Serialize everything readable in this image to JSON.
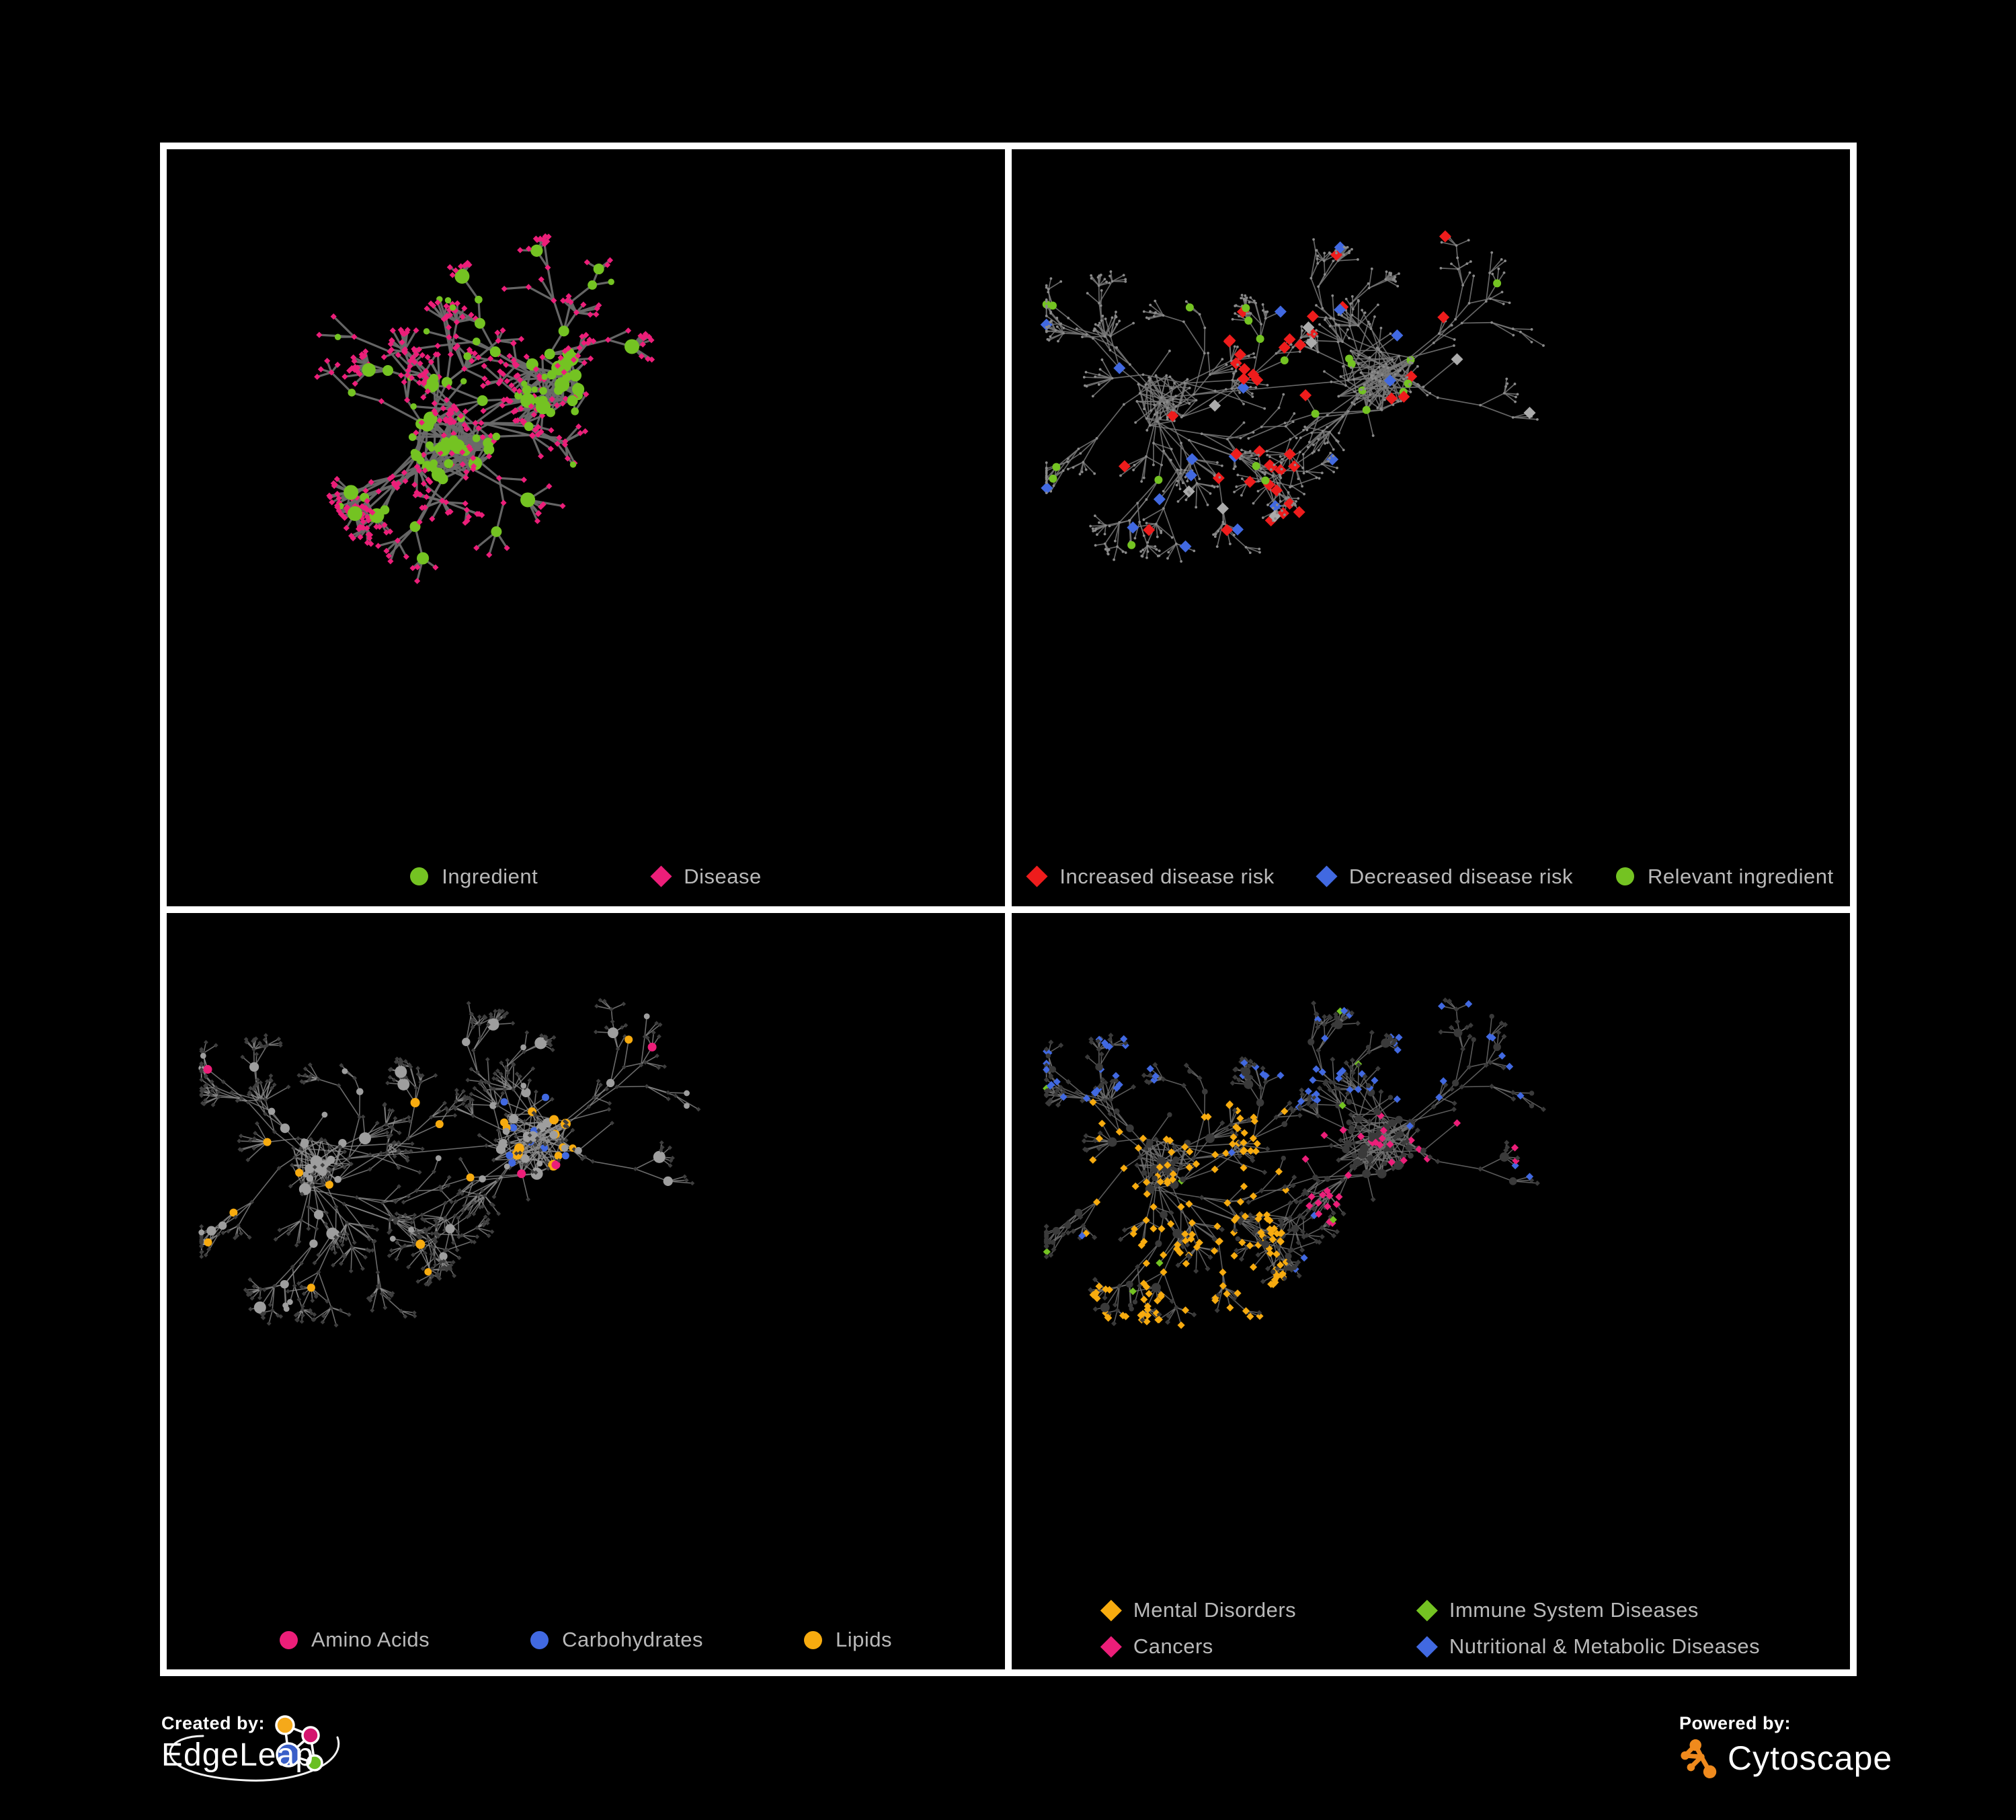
{
  "page": {
    "background": "#000000",
    "frame_color": "#ffffff"
  },
  "palette": {
    "green": "#74c322",
    "magenta": "#ec1e79",
    "red": "#ee1c1c",
    "blue": "#4169e1",
    "amber": "#f7ab0f",
    "silver": "#ababab",
    "legend_text": "#b9b9b9"
  },
  "panels": [
    {
      "name": "ingredient-disease-network",
      "legend": [
        {
          "shape": "circle",
          "color": "#74c322",
          "label": "Ingredient"
        },
        {
          "shape": "diamond",
          "color": "#ec1e79",
          "label": "Disease"
        }
      ],
      "style": {
        "edge_color": "#6a6a6a",
        "edge_width": 3.2,
        "edge_opacity": 0.95,
        "circle_color": "#74c322",
        "diamond_color": "#ec1e79"
      }
    },
    {
      "name": "disease-risk-network",
      "legend": [
        {
          "shape": "diamond",
          "color": "#ee1c1c",
          "label": "Increased disease risk"
        },
        {
          "shape": "diamond",
          "color": "#4169e1",
          "label": "Decreased disease risk"
        },
        {
          "shape": "circle",
          "color": "#74c322",
          "label": "Relevant ingredient"
        }
      ],
      "style": {
        "edge_color": "#787878",
        "edge_width": 1.7,
        "edge_opacity": 0.85,
        "base_node_color": "#8a8a8a",
        "neutral_diamond_color": "#ababab",
        "increased_color": "#ee1c1c",
        "decreased_color": "#4169e1",
        "ingredient_color": "#74c322"
      }
    },
    {
      "name": "chemical-class-network",
      "legend": [
        {
          "shape": "circle",
          "color": "#ec1e79",
          "label": "Amino Acids"
        },
        {
          "shape": "circle",
          "color": "#4169e1",
          "label": "Carbohydrates"
        },
        {
          "shape": "circle",
          "color": "#f7ab0f",
          "label": "Lipids"
        }
      ],
      "style": {
        "edge_color": "#8f8f8f",
        "edge_width": 1.6,
        "edge_opacity": 0.75,
        "muted_diamond_color": "#3e3e3e",
        "base_circle_color": "#9e9e9e",
        "amino_color": "#ec1e79",
        "carb_color": "#4169e1",
        "lipid_color": "#f7ab0f"
      }
    },
    {
      "name": "disease-category-network",
      "legend": [
        {
          "shape": "diamond",
          "color": "#f7ab0f",
          "label": "Mental Disorders"
        },
        {
          "shape": "diamond",
          "color": "#74c322",
          "label": "Immune System Diseases"
        },
        {
          "shape": "diamond",
          "color": "#ec1e79",
          "label": "Cancers"
        },
        {
          "shape": "diamond",
          "color": "#4169e1",
          "label": "Nutritional & Metabolic Diseases"
        }
      ],
      "style": {
        "edge_color": "#707070",
        "edge_width": 1.6,
        "edge_opacity": 0.8,
        "muted_node_color": "#3a3a3a",
        "mental_color": "#f7ab0f",
        "immune_color": "#74c322",
        "cancer_color": "#ec1e79",
        "metabolic_color": "#4169e1"
      }
    }
  ],
  "footer": {
    "created_by_label": "Created by:",
    "created_by_name": "EdgeLeap",
    "powered_by_label": "Powered by:",
    "powered_by_name": "Cytoscape",
    "edgeleap_logo": {
      "orange": "#f5a91a",
      "pink": "#d4146e",
      "blue": "#3a5fc8",
      "green": "#6abf23",
      "stroke": "#ffffff"
    },
    "cytoscape_logo": {
      "orange": "#ef8a1d"
    }
  }
}
